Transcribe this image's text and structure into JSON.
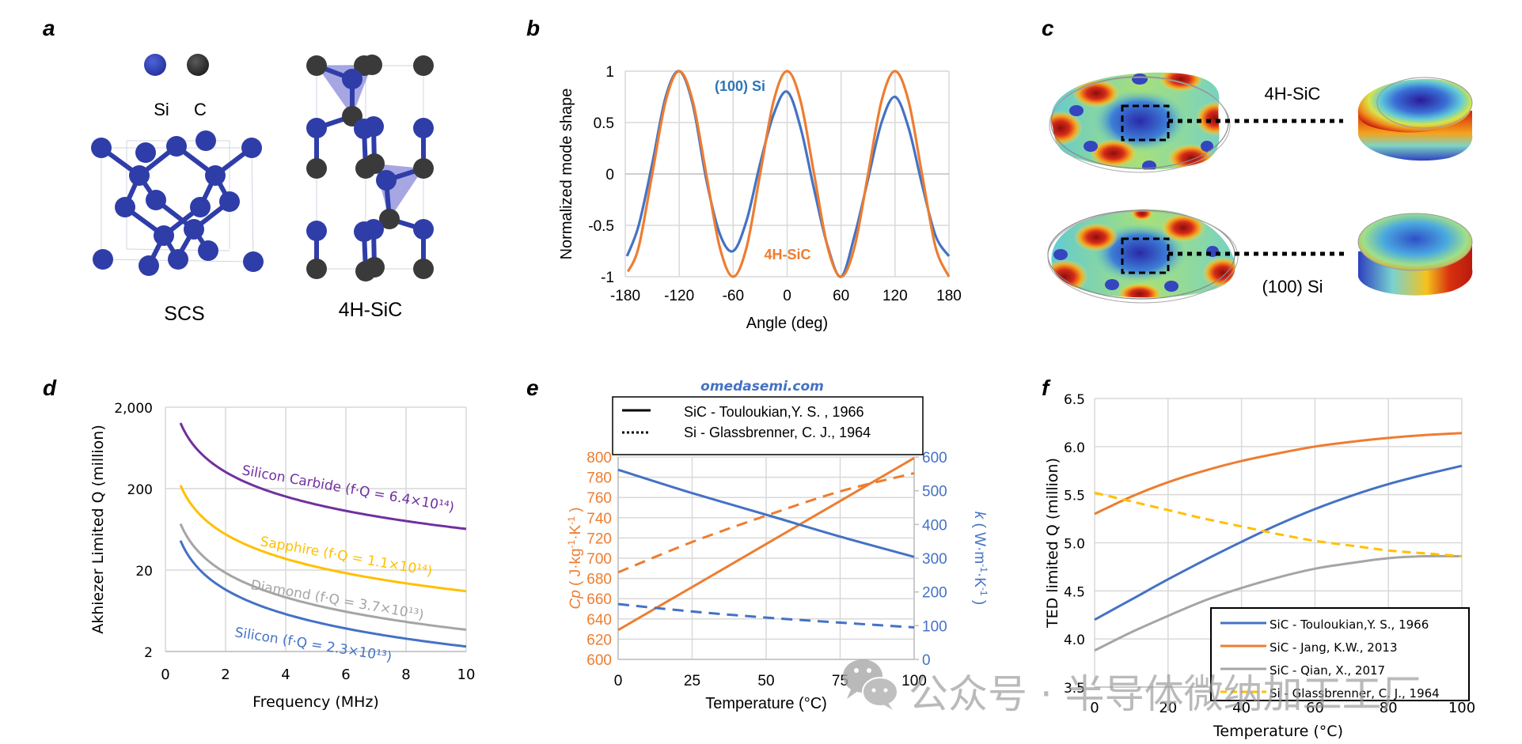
{
  "panel_labels": {
    "a": "a",
    "b": "b",
    "c": "c",
    "d": "d",
    "e": "e",
    "f": "f"
  },
  "panel_a": {
    "legend_si": "Si",
    "legend_c": "C",
    "scs_label": "SCS",
    "sic_label": "4H-SiC",
    "colors": {
      "si": "#2f3da8",
      "c": "#3a3a3a",
      "tetra": "#6a6ad0"
    }
  },
  "panel_c": {
    "top_label": "4H-SiC",
    "bottom_label": "(100) Si"
  },
  "watermark": {
    "site": "omedasemi.com",
    "wechat": "公众号 · 半导体微纳加工工厂"
  },
  "chart_data": [
    {
      "id": "b",
      "type": "line",
      "title": "",
      "xlabel": "Angle (deg)",
      "ylabel": "Normalized mode shape",
      "xlim": [
        -180,
        180
      ],
      "ylim": [
        -1,
        1
      ],
      "xticks": [
        -180,
        -120,
        -60,
        0,
        60,
        120,
        180
      ],
      "yticks": [
        -1,
        -0.5,
        0,
        0.5,
        1
      ],
      "grid": true,
      "annotations": [
        {
          "text": "(100) Si",
          "color": "#2e75b6"
        },
        {
          "text": "4H-SiC",
          "color": "#ed7d31"
        }
      ],
      "series": [
        {
          "name": "4H-SiC",
          "color": "#ed7d31",
          "x": [
            -177,
            -165,
            -150,
            -135,
            -120,
            -105,
            -90,
            -75,
            -60,
            -45,
            -30,
            -15,
            0,
            15,
            30,
            45,
            60,
            75,
            90,
            105,
            120,
            135,
            150,
            165,
            180
          ],
          "y": [
            -0.95,
            -0.71,
            0.0,
            0.71,
            1.0,
            0.71,
            0.0,
            -0.71,
            -1.0,
            -0.71,
            0.0,
            0.71,
            1.0,
            0.71,
            0.0,
            -0.71,
            -1.0,
            -0.71,
            0.0,
            0.71,
            1.0,
            0.71,
            0.0,
            -0.71,
            -1.0
          ]
        },
        {
          "name": "(100) Si",
          "color": "#4472c4",
          "x": [
            -178,
            -165,
            -150,
            -135,
            -120,
            -105,
            -90,
            -75,
            -60,
            -45,
            -30,
            -15,
            0,
            15,
            30,
            45,
            60,
            75,
            90,
            105,
            120,
            135,
            150,
            165,
            180
          ],
          "y": [
            -0.8,
            -0.5,
            0.1,
            0.75,
            1.0,
            0.68,
            -0.05,
            -0.58,
            -0.75,
            -0.45,
            0.1,
            0.58,
            0.8,
            0.45,
            -0.15,
            -0.7,
            -1.0,
            -0.6,
            -0.05,
            0.5,
            0.75,
            0.45,
            -0.1,
            -0.6,
            -0.8
          ]
        }
      ]
    },
    {
      "id": "d",
      "type": "line",
      "title": "",
      "xlabel": "Frequency (MHz)",
      "ylabel": "Akhiezer Limited Q (million)",
      "xlim": [
        0,
        10
      ],
      "ylim": [
        2,
        2000
      ],
      "yscale": "log",
      "xticks": [
        0,
        2,
        4,
        6,
        8,
        10
      ],
      "yticks": [
        2,
        20,
        200,
        2000
      ],
      "ytick_labels": [
        "2",
        "20",
        "200",
        "2,000"
      ],
      "grid": true,
      "series": [
        {
          "name": "Silicon Carbide",
          "label": "Silicon Carbide (f·Q = 6.4×10¹⁴)",
          "fQ": 640000000000000.0,
          "color": "#7030a0",
          "x": [
            0.5,
            0.75,
            1,
            1.5,
            2,
            3,
            4,
            5,
            6,
            7,
            8,
            9,
            10
          ],
          "y": [
            1280,
            853,
            640,
            427,
            320,
            213,
            160,
            128,
            107,
            91,
            80,
            71,
            64
          ]
        },
        {
          "name": "Sapphire",
          "label": "Sapphire (f·Q = 1.1×10¹⁴)",
          "fQ": 110000000000000.0,
          "color": "#ffc000",
          "x": [
            0.5,
            0.75,
            1,
            1.5,
            2,
            3,
            4,
            5,
            6,
            7,
            8,
            9,
            10
          ],
          "y": [
            220,
            147,
            110,
            73,
            55,
            37,
            27.5,
            22,
            18.3,
            15.7,
            13.8,
            12.2,
            11
          ]
        },
        {
          "name": "Diamond",
          "label": "Diamond (f·Q = 3.7×10¹³)",
          "fQ": 37000000000000.0,
          "color": "#a5a5a5",
          "x": [
            0.5,
            0.75,
            1,
            1.5,
            2,
            3,
            4,
            5,
            6,
            7,
            8,
            9,
            10
          ],
          "y": [
            74,
            49,
            37,
            24.7,
            18.5,
            12.3,
            9.25,
            7.4,
            6.2,
            5.3,
            4.6,
            4.1,
            3.7
          ]
        },
        {
          "name": "Silicon",
          "label": "Silicon (f·Q = 2.3×10¹³)",
          "fQ": 23000000000000.0,
          "color": "#4472c4",
          "x": [
            0.5,
            0.75,
            1,
            1.5,
            2,
            3,
            4,
            5,
            6,
            7,
            8,
            9,
            10
          ],
          "y": [
            46,
            30.7,
            23,
            15.3,
            11.5,
            7.7,
            5.75,
            4.6,
            3.8,
            3.3,
            2.9,
            2.6,
            2.3
          ]
        }
      ]
    },
    {
      "id": "e",
      "type": "line",
      "title": "",
      "xlabel": "Temperature (°C)",
      "ylabel_left": "Cp ( J·kg⁻¹·K⁻¹ )",
      "ylabel_left_parts": {
        "symbol": "Cp",
        "unit": " ( J·kg",
        "e1": "-1",
        "mid": "·K",
        "e2": "-1",
        "end": " )"
      },
      "ylabel_right": "k ( W·m⁻¹·K⁻¹ )",
      "ylabel_right_parts": {
        "symbol": "k",
        "unit": " ( W·m",
        "e1": "-1",
        "mid": "·K",
        "e2": "-1",
        "end": " )"
      },
      "xlim": [
        0,
        100
      ],
      "ylim_left": [
        600,
        800
      ],
      "ylim_right": [
        0,
        600
      ],
      "xticks": [
        0,
        25,
        50,
        75,
        100
      ],
      "yticks_left": [
        600,
        620,
        640,
        660,
        680,
        700,
        720,
        740,
        760,
        780,
        800
      ],
      "yticks_right": [
        0,
        100,
        200,
        300,
        400,
        500,
        600
      ],
      "left_color": "#ed7d31",
      "right_color": "#4472c4",
      "grid": true,
      "legend": {
        "position": "top",
        "entries": [
          {
            "text": "SiC - Touloukian,Y. S. , 1966",
            "style": "solid"
          },
          {
            "text": "Si - Glassbrenner, C. J., 1964",
            "style": "dotted"
          }
        ]
      },
      "series": [
        {
          "name": "SiC Cp",
          "axis": "left",
          "style": "solid",
          "color": "#ed7d31",
          "x": [
            0,
            25,
            50,
            75,
            100
          ],
          "y": [
            629,
            671.5,
            714,
            756.5,
            799
          ]
        },
        {
          "name": "Si Cp",
          "axis": "left",
          "style": "dashed",
          "color": "#ed7d31",
          "x": [
            0,
            25,
            50,
            75,
            100
          ],
          "y": [
            686,
            716,
            742,
            766,
            784
          ]
        },
        {
          "name": "SiC k",
          "axis": "right",
          "style": "solid",
          "color": "#4472c4",
          "x": [
            0,
            25,
            50,
            75,
            100
          ],
          "y": [
            562,
            493,
            429,
            364,
            304
          ]
        },
        {
          "name": "Si k",
          "axis": "right",
          "style": "dashed",
          "color": "#4472c4",
          "x": [
            0,
            25,
            50,
            75,
            100
          ],
          "y": [
            164,
            142,
            124,
            109,
            95
          ]
        }
      ]
    },
    {
      "id": "f",
      "type": "line",
      "title": "",
      "xlabel": "Temperature (°C)",
      "ylabel": "TED limited Q (million)",
      "xlim": [
        0,
        100
      ],
      "ylim": [
        3.5,
        6.5
      ],
      "xticks": [
        0,
        20,
        40,
        60,
        80,
        100
      ],
      "yticks": [
        3.5,
        4.0,
        4.5,
        5.0,
        5.5,
        6.0,
        6.5
      ],
      "ytick_labels": [
        "3.5",
        "4.0",
        "4.5",
        "5.0",
        "5.5",
        "6.0",
        "6.5"
      ],
      "grid": true,
      "legend": {
        "position": "bottom-right"
      },
      "series": [
        {
          "name": "SiC - Touloukian,Y. S., 1966",
          "style": "solid",
          "color": "#4472c4",
          "x": [
            0,
            10,
            20,
            30,
            40,
            50,
            60,
            70,
            80,
            90,
            100
          ],
          "y": [
            4.2,
            4.41,
            4.62,
            4.82,
            5.01,
            5.19,
            5.35,
            5.49,
            5.61,
            5.71,
            5.8
          ]
        },
        {
          "name": "SiC - Jang, K.W., 2013",
          "style": "solid",
          "color": "#ed7d31",
          "x": [
            0,
            10,
            20,
            30,
            40,
            50,
            60,
            70,
            80,
            90,
            100
          ],
          "y": [
            5.3,
            5.48,
            5.63,
            5.75,
            5.85,
            5.93,
            6.0,
            6.05,
            6.09,
            6.12,
            6.14
          ]
        },
        {
          "name": "SiC - Qian, X., 2017",
          "style": "solid",
          "color": "#a5a5a5",
          "x": [
            0,
            10,
            20,
            30,
            40,
            50,
            60,
            70,
            80,
            90,
            100
          ],
          "y": [
            3.88,
            4.07,
            4.24,
            4.4,
            4.53,
            4.64,
            4.73,
            4.79,
            4.84,
            4.86,
            4.86
          ]
        },
        {
          "name": "Si - Glassbrenner, C. J., 1964",
          "style": "dashed",
          "color": "#ffc000",
          "x": [
            0,
            10,
            20,
            30,
            40,
            50,
            60,
            70,
            80,
            90,
            100
          ],
          "y": [
            5.52,
            5.43,
            5.34,
            5.25,
            5.17,
            5.09,
            5.02,
            4.97,
            4.92,
            4.89,
            4.86
          ]
        }
      ]
    }
  ]
}
